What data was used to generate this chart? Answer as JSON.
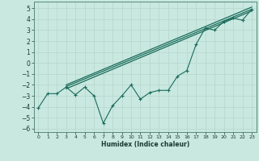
{
  "xlabel": "Humidex (Indice chaleur)",
  "background_color": "#c8e8e0",
  "grid_color": "#b8d8d0",
  "line_color": "#1a6b5a",
  "xlim": [
    -0.5,
    23.5
  ],
  "ylim": [
    -6.3,
    5.6
  ],
  "xticks": [
    0,
    1,
    2,
    3,
    4,
    5,
    6,
    7,
    8,
    9,
    10,
    11,
    12,
    13,
    14,
    15,
    16,
    17,
    18,
    19,
    20,
    21,
    22,
    23
  ],
  "yticks": [
    -6,
    -5,
    -4,
    -3,
    -2,
    -1,
    0,
    1,
    2,
    3,
    4,
    5
  ],
  "data_x": [
    0,
    1,
    2,
    3,
    4,
    5,
    6,
    7,
    8,
    9,
    10,
    11,
    12,
    13,
    14,
    15,
    16,
    17,
    18,
    19,
    20,
    21,
    22,
    23
  ],
  "data_y": [
    -4.1,
    -2.8,
    -2.8,
    -2.2,
    -2.9,
    -2.2,
    -3.0,
    -5.5,
    -3.9,
    -3.0,
    -2.0,
    -3.3,
    -2.7,
    -2.5,
    -2.5,
    -1.2,
    -0.7,
    1.7,
    3.2,
    3.0,
    3.8,
    4.1,
    3.9,
    4.9
  ],
  "ref_lines": [
    {
      "x0": 3.0,
      "y0": -2.15,
      "x1": 23,
      "y1": 4.9
    },
    {
      "x0": 3.0,
      "y0": -2.0,
      "x1": 23,
      "y1": 5.1
    },
    {
      "x0": 3.0,
      "y0": -2.35,
      "x1": 23,
      "y1": 4.75
    }
  ]
}
